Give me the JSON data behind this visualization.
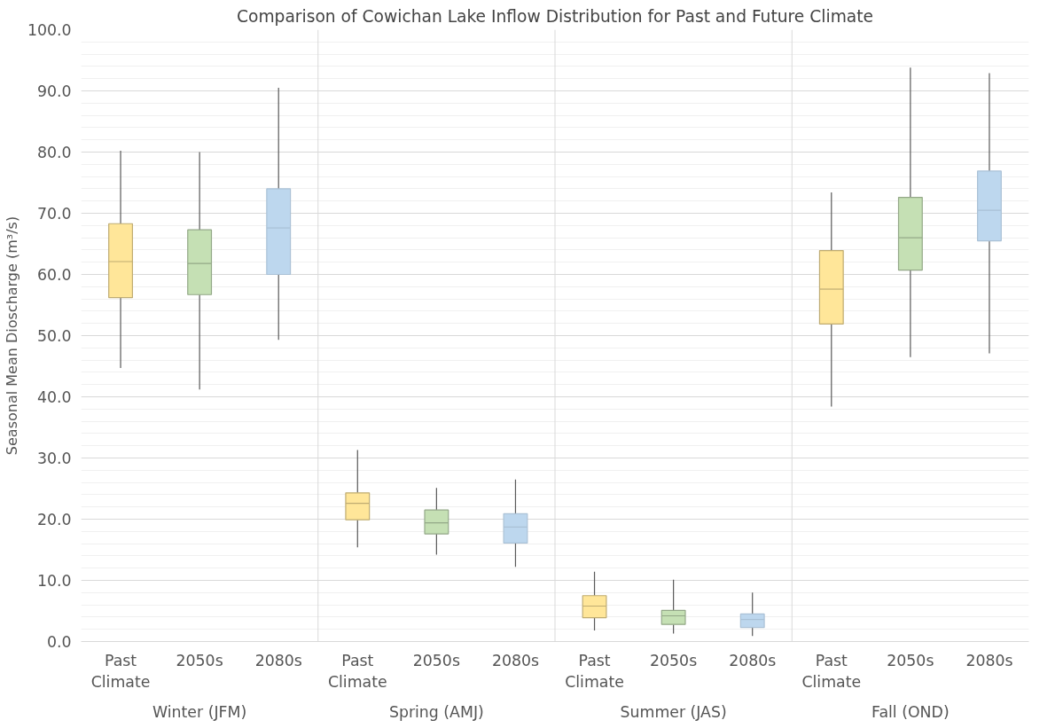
{
  "chart_data": {
    "type": "box",
    "title": "Comparison of Cowichan Lake Inflow Distribution for Past and Future Climate",
    "ylabel": "Seasonal Mean Dioscharge (m³/s)",
    "categories": [
      "Winter (JFM)",
      "Spring (AMJ)",
      "Summer (JAS)",
      "Fall (OND)"
    ],
    "ylim": [
      0,
      100
    ],
    "yticks": [
      {
        "value": 0,
        "label": "0.0"
      },
      {
        "value": 10,
        "label": "10.0"
      },
      {
        "value": 20,
        "label": "20.0"
      },
      {
        "value": 30,
        "label": "30.0"
      },
      {
        "value": 40,
        "label": "40.0"
      },
      {
        "value": 50,
        "label": "50.0"
      },
      {
        "value": 60,
        "label": "60.0"
      },
      {
        "value": 70,
        "label": "70.0"
      },
      {
        "value": 80,
        "label": "80.0"
      },
      {
        "value": 90,
        "label": "90.0"
      },
      {
        "value": 100,
        "label": "100.0"
      }
    ],
    "grid": "y",
    "series": [
      {
        "name": "Past Climate",
        "color": "#ffe699",
        "boxes": [
          {
            "low": 44.7,
            "q1": 56.2,
            "median": 62.1,
            "q3": 68.3,
            "high": 80.2
          },
          {
            "low": 15.4,
            "q1": 19.9,
            "median": 22.6,
            "q3": 24.3,
            "high": 31.3
          },
          {
            "low": 1.8,
            "q1": 3.9,
            "median": 5.8,
            "q3": 7.5,
            "high": 11.4
          },
          {
            "low": 38.4,
            "q1": 51.9,
            "median": 57.6,
            "q3": 63.9,
            "high": 73.4
          }
        ]
      },
      {
        "name": "2050s",
        "color": "#c5e0b4",
        "boxes": [
          {
            "low": 41.2,
            "q1": 56.7,
            "median": 61.8,
            "q3": 67.3,
            "high": 80.0
          },
          {
            "low": 14.2,
            "q1": 17.6,
            "median": 19.4,
            "q3": 21.5,
            "high": 25.1
          },
          {
            "low": 1.3,
            "q1": 2.8,
            "median": 4.2,
            "q3": 5.1,
            "high": 10.1
          },
          {
            "low": 46.5,
            "q1": 60.7,
            "median": 66.0,
            "q3": 72.6,
            "high": 93.8
          }
        ]
      },
      {
        "name": "2080s",
        "color": "#bdd7ee",
        "boxes": [
          {
            "low": 49.3,
            "q1": 60.0,
            "median": 67.6,
            "q3": 74.0,
            "high": 90.5
          },
          {
            "low": 12.2,
            "q1": 16.1,
            "median": 18.7,
            "q3": 20.9,
            "high": 26.5
          },
          {
            "low": 0.9,
            "q1": 2.3,
            "median": 3.6,
            "q3": 4.5,
            "high": 8.0
          },
          {
            "low": 47.1,
            "q1": 65.5,
            "median": 70.5,
            "q3": 76.9,
            "high": 92.9
          }
        ]
      }
    ]
  }
}
